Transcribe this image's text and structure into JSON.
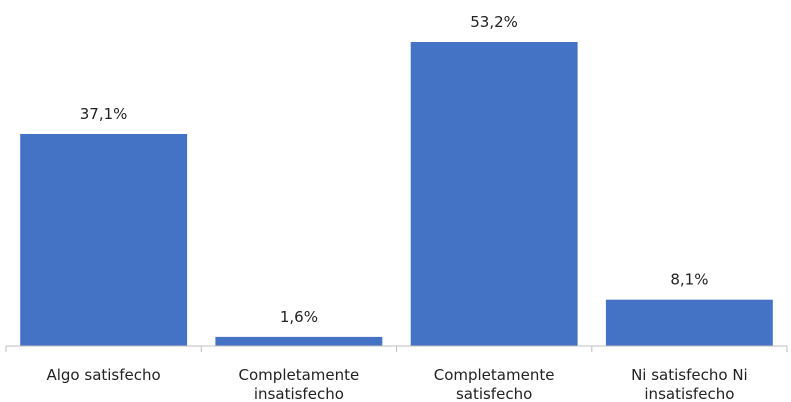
{
  "chart_data": {
    "type": "bar",
    "categories": [
      [
        "Algo satisfecho"
      ],
      [
        "Completamente",
        "insatisfecho"
      ],
      [
        "Completamente",
        "satisfecho"
      ],
      [
        "Ni satisfecho Ni",
        "insatisfecho"
      ]
    ],
    "values": [
      37.1,
      1.6,
      53.2,
      8.1
    ],
    "value_labels": [
      "37,1%",
      "1,6%",
      "53,2%",
      "8,1%"
    ],
    "title": "",
    "xlabel": "",
    "ylabel": "",
    "ylim": [
      0,
      53.2
    ],
    "grid": false,
    "legend": "none",
    "bar_color": "#4472C4",
    "axis_color": "#BFBFBF"
  }
}
